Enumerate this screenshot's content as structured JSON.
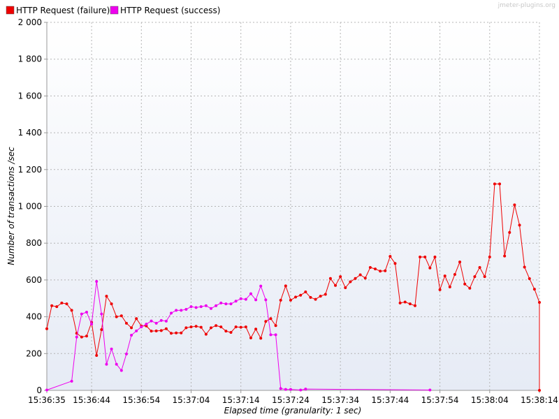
{
  "watermark": "jmeter-plugins.org",
  "colors": {
    "failure": "#ee0000",
    "success": "#ee00ee"
  },
  "chart_data": {
    "type": "line",
    "title": "",
    "xlabel": "Elapsed time (granularity: 1 sec)",
    "ylabel": "Number of transactions /sec",
    "ylim": [
      0,
      2000
    ],
    "xlim_seconds": [
      "15:36:35",
      "15:38:14"
    ],
    "yticks": [
      0,
      200,
      400,
      600,
      800,
      1000,
      1200,
      1400,
      1600,
      1800,
      2000
    ],
    "ytick_labels": [
      "0",
      "200",
      "400",
      "600",
      "800",
      "1 000",
      "1 200",
      "1 400",
      "1 600",
      "1 800",
      "2 000"
    ],
    "xtick_labels": [
      "15:36:35",
      "15:36:44",
      "15:36:54",
      "15:37:04",
      "15:37:14",
      "15:37:24",
      "15:37:34",
      "15:37:44",
      "15:37:54",
      "15:38:04",
      "15:38:14"
    ],
    "grid": true,
    "legend_position": "top-left",
    "series": [
      {
        "name": "HTTP Request (failure)",
        "color": "#ee0000",
        "x": [
          "15:36:35",
          "15:36:36",
          "15:36:37",
          "15:36:38",
          "15:36:39",
          "15:36:40",
          "15:36:41",
          "15:36:42",
          "15:36:43",
          "15:36:44",
          "15:36:45",
          "15:36:46",
          "15:36:47",
          "15:36:48",
          "15:36:49",
          "15:36:50",
          "15:36:51",
          "15:36:52",
          "15:36:53",
          "15:36:54",
          "15:36:55",
          "15:36:56",
          "15:36:57",
          "15:36:58",
          "15:36:59",
          "15:37:00",
          "15:37:01",
          "15:37:02",
          "15:37:03",
          "15:37:04",
          "15:37:05",
          "15:37:06",
          "15:37:07",
          "15:37:08",
          "15:37:09",
          "15:37:10",
          "15:37:11",
          "15:37:12",
          "15:37:13",
          "15:37:14",
          "15:37:15",
          "15:37:16",
          "15:37:17",
          "15:37:18",
          "15:37:19",
          "15:37:20",
          "15:37:21",
          "15:37:22",
          "15:37:23",
          "15:37:24",
          "15:37:25",
          "15:37:26",
          "15:37:27",
          "15:37:28",
          "15:37:29",
          "15:37:30",
          "15:37:31",
          "15:37:32",
          "15:37:33",
          "15:37:34",
          "15:37:35",
          "15:37:36",
          "15:37:37",
          "15:37:38",
          "15:37:39",
          "15:37:40",
          "15:37:41",
          "15:37:42",
          "15:37:43",
          "15:37:44",
          "15:37:45",
          "15:37:46",
          "15:37:47",
          "15:37:48",
          "15:37:49",
          "15:37:50",
          "15:37:51",
          "15:37:52",
          "15:37:53",
          "15:37:54",
          "15:37:55",
          "15:37:56",
          "15:37:57",
          "15:37:58",
          "15:37:59",
          "15:38:00",
          "15:38:01",
          "15:38:02",
          "15:38:03",
          "15:38:04",
          "15:38:05",
          "15:38:06",
          "15:38:07",
          "15:38:08",
          "15:38:09",
          "15:38:10",
          "15:38:11",
          "15:38:12",
          "15:38:13",
          "15:38:14",
          "15:38:14"
        ],
        "values": [
          335,
          460,
          455,
          475,
          470,
          435,
          310,
          290,
          295,
          370,
          190,
          330,
          512,
          470,
          400,
          405,
          365,
          340,
          390,
          350,
          350,
          322,
          323,
          325,
          335,
          310,
          312,
          312,
          340,
          345,
          348,
          343,
          305,
          340,
          352,
          345,
          322,
          315,
          345,
          343,
          345,
          285,
          333,
          283,
          375,
          390,
          352,
          490,
          568,
          490,
          507,
          517,
          535,
          505,
          495,
          512,
          522,
          608,
          570,
          618,
          558,
          590,
          608,
          628,
          610,
          668,
          660,
          648,
          650,
          728,
          690,
          475,
          480,
          470,
          460,
          725,
          725,
          665,
          725,
          547,
          622,
          562,
          630,
          698,
          578,
          555,
          618,
          668,
          618,
          725,
          1122,
          1122,
          730,
          858,
          1008,
          898,
          670,
          607,
          550,
          478,
          0
        ]
      },
      {
        "name": "HTTP Request (success)",
        "color": "#ee00ee",
        "x": [
          "15:36:35",
          "15:36:40",
          "15:36:41",
          "15:36:42",
          "15:36:43",
          "15:36:44",
          "15:36:45",
          "15:36:46",
          "15:36:47",
          "15:36:48",
          "15:36:49",
          "15:36:50",
          "15:36:51",
          "15:36:52",
          "15:36:53",
          "15:36:54",
          "15:36:55",
          "15:36:56",
          "15:36:57",
          "15:36:58",
          "15:36:59",
          "15:37:00",
          "15:37:01",
          "15:37:02",
          "15:37:03",
          "15:37:04",
          "15:37:05",
          "15:37:06",
          "15:37:07",
          "15:37:08",
          "15:37:09",
          "15:37:10",
          "15:37:11",
          "15:37:12",
          "15:37:13",
          "15:37:14",
          "15:37:15",
          "15:37:16",
          "15:37:17",
          "15:37:18",
          "15:37:19",
          "15:37:20",
          "15:37:21",
          "15:37:22",
          "15:37:23",
          "15:37:24",
          "15:37:26",
          "15:37:27",
          "15:37:52"
        ],
        "values": [
          2,
          50,
          290,
          415,
          425,
          360,
          592,
          415,
          142,
          225,
          142,
          108,
          198,
          300,
          323,
          345,
          360,
          377,
          365,
          380,
          376,
          420,
          435,
          435,
          440,
          455,
          450,
          455,
          460,
          445,
          460,
          475,
          470,
          470,
          485,
          498,
          495,
          525,
          492,
          567,
          492,
          302,
          302,
          10,
          5,
          5,
          2,
          7,
          2
        ]
      }
    ]
  }
}
